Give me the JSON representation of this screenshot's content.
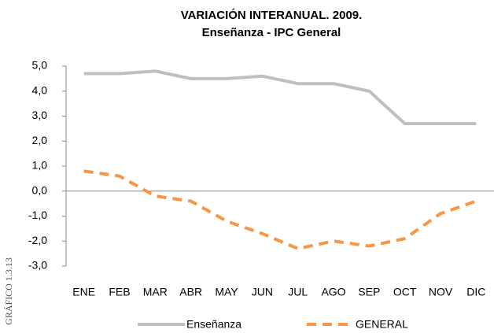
{
  "chart_data": {
    "type": "line",
    "title": "VARIACIÓN INTERANUAL. 2009.",
    "subtitle": "Enseñanza - IPC General",
    "side_label": "GRÁFICO 1.3.13",
    "categories": [
      "ENE",
      "FEB",
      "MAR",
      "ABR",
      "MAY",
      "JUN",
      "JUL",
      "AGO",
      "SEP",
      "OCT",
      "NOV",
      "DIC"
    ],
    "series": [
      {
        "name": "Enseñanza",
        "color": "#bfbfbf",
        "dashed": false,
        "values": [
          4.7,
          4.7,
          4.8,
          4.5,
          4.5,
          4.6,
          4.3,
          4.3,
          4.0,
          2.7,
          2.7,
          2.7
        ]
      },
      {
        "name": "GENERAL",
        "color": "#f79646",
        "dashed": true,
        "values": [
          0.8,
          0.6,
          -0.2,
          -0.4,
          -1.2,
          -1.7,
          -2.3,
          -2.0,
          -2.2,
          -1.9,
          -0.9,
          -0.4
        ]
      }
    ],
    "ylim": [
      -3,
      5
    ],
    "yticks": [
      {
        "value": 5,
        "label": "5,0"
      },
      {
        "value": 4,
        "label": "4,0"
      },
      {
        "value": 3,
        "label": "3,0"
      },
      {
        "value": 2,
        "label": "2,0"
      },
      {
        "value": 1,
        "label": "1,0"
      },
      {
        "value": 0,
        "label": "0,0"
      },
      {
        "value": -1,
        "label": "-1,0"
      },
      {
        "value": -2,
        "label": "-2,0"
      },
      {
        "value": -3,
        "label": "-3,0"
      }
    ],
    "legend": "bottom"
  }
}
